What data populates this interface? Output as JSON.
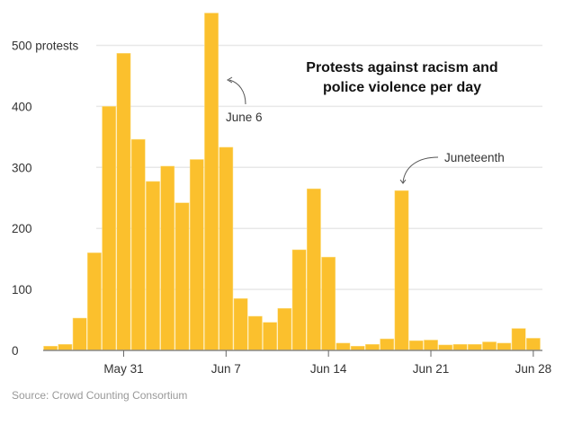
{
  "chart_data": {
    "type": "bar",
    "title_lines": [
      "Protests against racism and",
      "police violence per day"
    ],
    "source": "Source: Crowd Counting Consortium",
    "xlabel": "",
    "ylabel": "",
    "ylim": [
      0,
      550
    ],
    "yticks": [
      0,
      100,
      200,
      300,
      400,
      500
    ],
    "ytick_labels": [
      "0",
      "100",
      "200",
      "300",
      "400",
      "500 protests"
    ],
    "grid": true,
    "bar_color": "#fbc02d",
    "categories": [
      "May 26",
      "May 27",
      "May 28",
      "May 29",
      "May 30",
      "May 31",
      "Jun 1",
      "Jun 2",
      "Jun 3",
      "Jun 4",
      "Jun 5",
      "Jun 6",
      "Jun 7",
      "Jun 8",
      "Jun 9",
      "Jun 10",
      "Jun 11",
      "Jun 12",
      "Jun 13",
      "Jun 14",
      "Jun 15",
      "Jun 16",
      "Jun 17",
      "Jun 18",
      "Jun 19",
      "Jun 20",
      "Jun 21",
      "Jun 22",
      "Jun 23",
      "Jun 24",
      "Jun 25",
      "Jun 26",
      "Jun 27",
      "Jun 28"
    ],
    "values": [
      7,
      10,
      53,
      160,
      400,
      487,
      346,
      277,
      302,
      242,
      313,
      553,
      333,
      85,
      56,
      46,
      69,
      165,
      265,
      153,
      12,
      7,
      10,
      19,
      262,
      16,
      17,
      9,
      10,
      10,
      14,
      12,
      36,
      20
    ],
    "xticks": [
      {
        "category": "May 31",
        "label": "May 31"
      },
      {
        "category": "Jun 7",
        "label": "Jun 7"
      },
      {
        "category": "Jun 14",
        "label": "Jun 14"
      },
      {
        "category": "Jun 21",
        "label": "Jun 21"
      },
      {
        "category": "Jun 28",
        "label": "Jun 28"
      }
    ],
    "annotations": [
      {
        "category": "Jun 6",
        "text": "June 6"
      },
      {
        "category": "Jun 19",
        "text": "Juneteenth"
      }
    ]
  }
}
